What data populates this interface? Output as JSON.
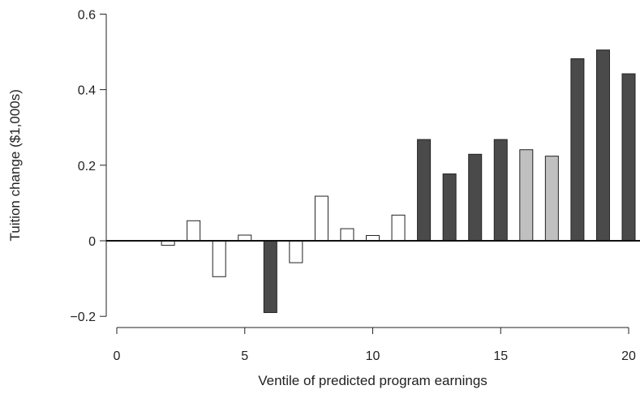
{
  "chart_data": {
    "type": "bar",
    "xlabel": "Ventile of predicted program earnings",
    "ylabel": "Tuition change ($1,000s)",
    "xlim": [
      -0.5,
      20.4
    ],
    "ylim": [
      -0.225,
      0.625
    ],
    "x_ticks": [
      0,
      5,
      10,
      15,
      20
    ],
    "x_tick_labels": [
      "0",
      "5",
      "10",
      "15",
      "20"
    ],
    "y_ticks": [
      -0.2,
      0,
      0.2,
      0.4,
      0.6
    ],
    "y_tick_labels": [
      "−0.2",
      "0",
      "0.2",
      "0.4",
      "0.6"
    ],
    "zero_line": true,
    "grid": false,
    "legend": "none",
    "colors": {
      "dark": "#4a4a4a",
      "light": "#c0c0c0",
      "empty": "#ffffff",
      "outline": "#222222"
    },
    "x": [
      1,
      2,
      3,
      4,
      5,
      6,
      7,
      8,
      9,
      10,
      11,
      12,
      13,
      14,
      15,
      16,
      17,
      18,
      19,
      20
    ],
    "values": [
      0.0,
      -0.012,
      0.053,
      -0.095,
      0.015,
      -0.19,
      -0.058,
      0.118,
      0.032,
      0.014,
      0.068,
      0.268,
      0.177,
      0.229,
      0.268,
      0.241,
      0.224,
      0.482,
      0.505,
      0.442
    ],
    "fill": [
      "empty",
      "empty",
      "empty",
      "empty",
      "empty",
      "dark",
      "empty",
      "empty",
      "empty",
      "empty",
      "empty",
      "dark",
      "dark",
      "dark",
      "dark",
      "light",
      "light",
      "dark",
      "dark",
      "dark"
    ]
  }
}
